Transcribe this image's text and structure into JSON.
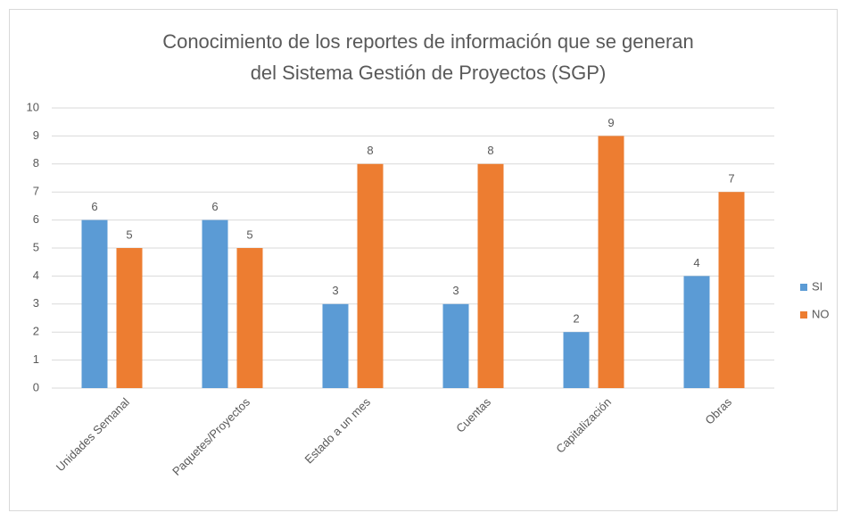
{
  "chart_data": {
    "type": "bar",
    "title": [
      "Conocimiento de los reportes de información que se generan",
      "del Sistema Gestión de Proyectos (SGP)"
    ],
    "categories": [
      "Unidades Semanal",
      "Paquetes/Proyectos",
      "Estado a un mes",
      "Cuentas",
      "Capitalización",
      "Obras"
    ],
    "series": [
      {
        "name": "SI",
        "color": "#5b9bd5",
        "values": [
          6,
          6,
          3,
          3,
          2,
          4
        ]
      },
      {
        "name": "NO",
        "color": "#ed7d31",
        "values": [
          5,
          5,
          8,
          8,
          9,
          7
        ]
      }
    ],
    "ylim": [
      0,
      10
    ],
    "yticks": [
      0,
      1,
      2,
      3,
      4,
      5,
      6,
      7,
      8,
      9,
      10
    ],
    "grid": true,
    "legend": "right"
  }
}
